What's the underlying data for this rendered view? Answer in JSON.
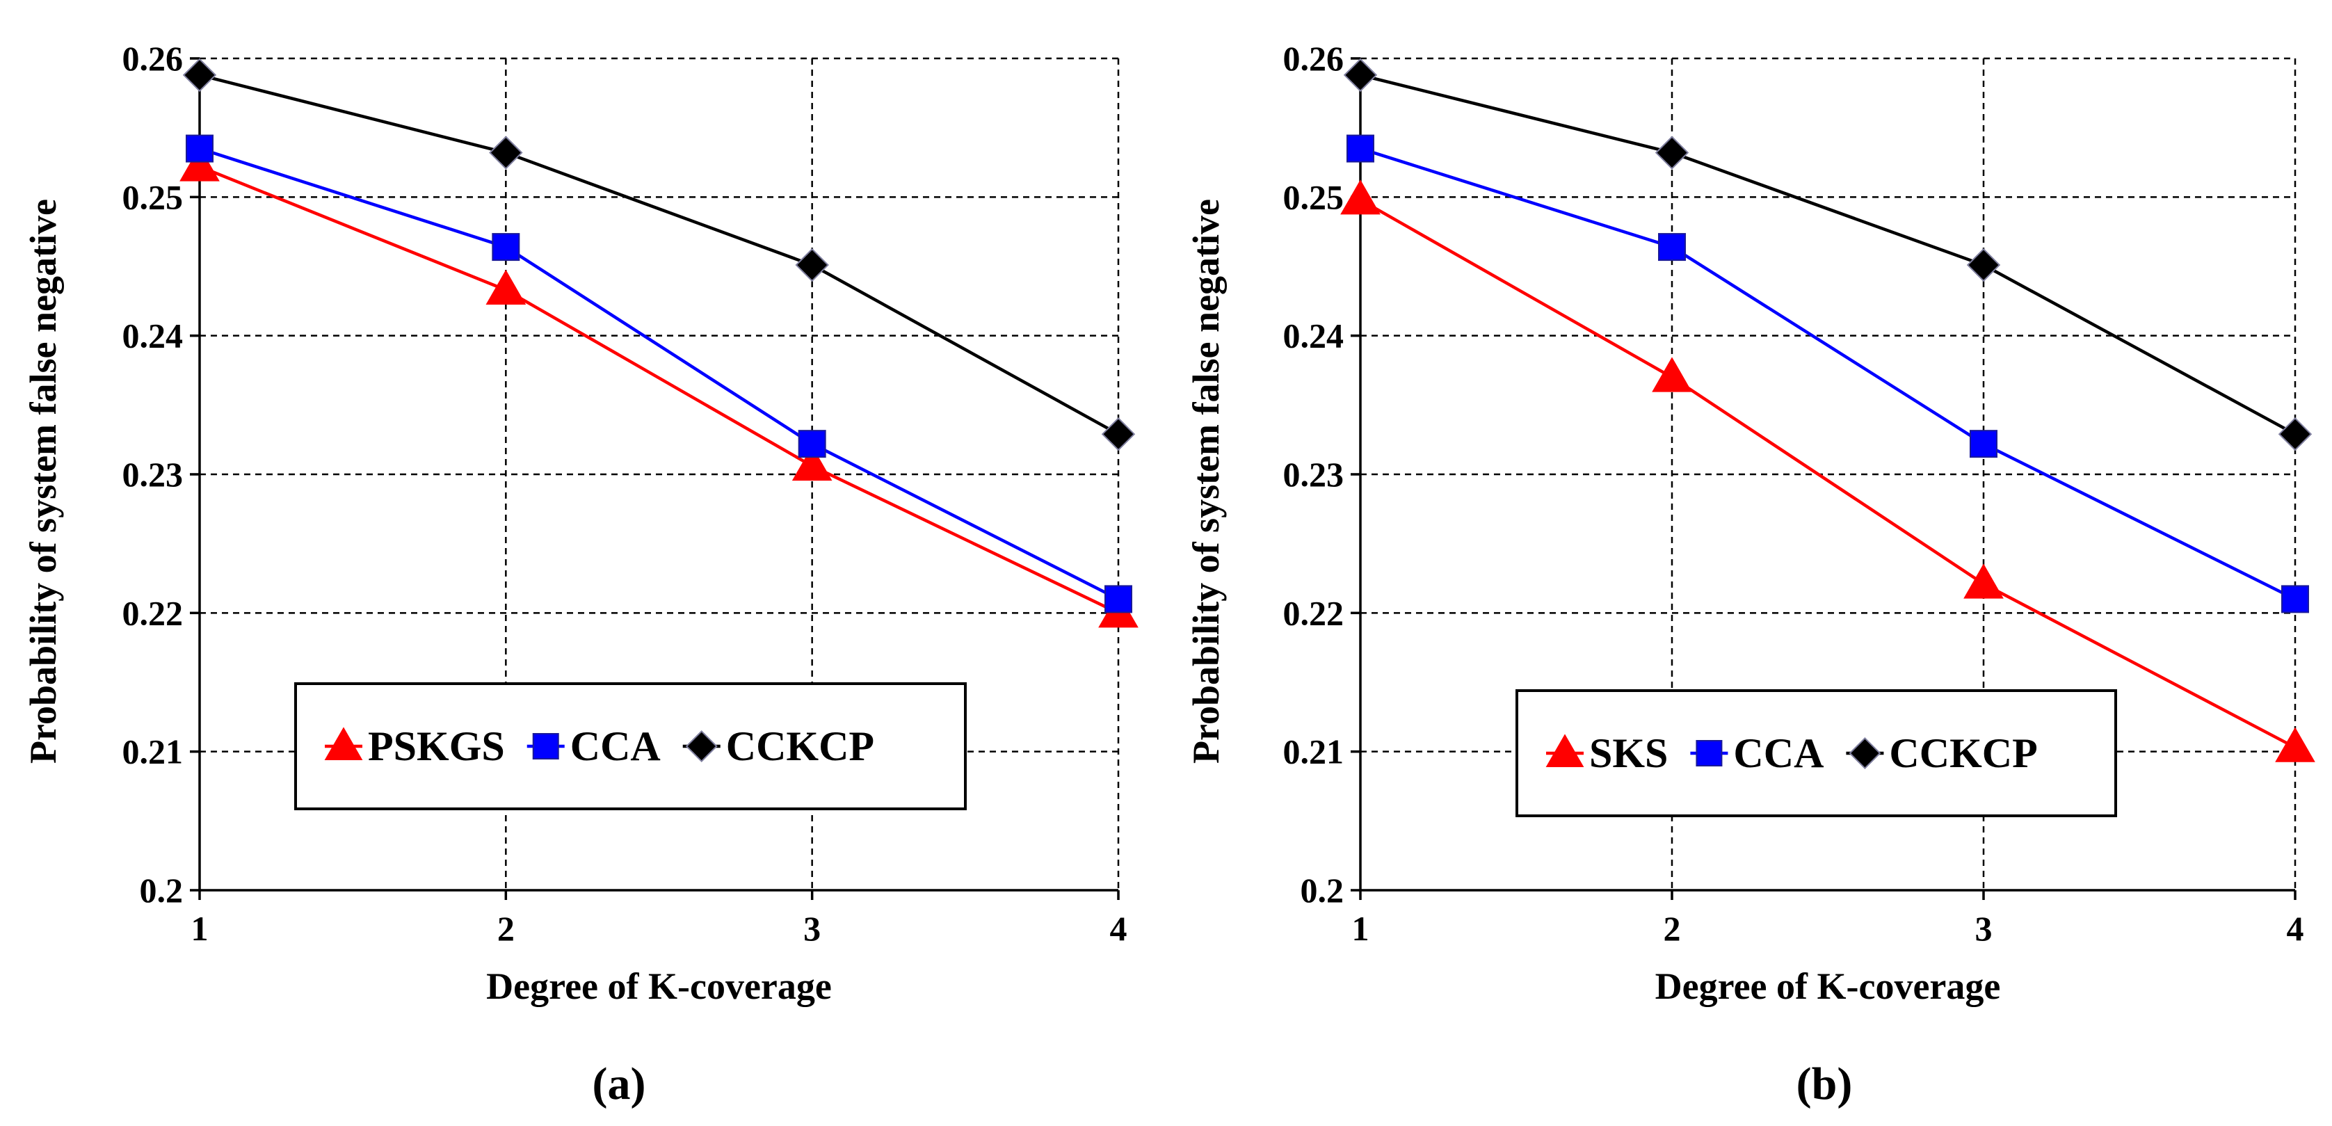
{
  "chart_data": [
    {
      "type": "line",
      "caption": "(a)",
      "xlabel": "Degree of K-coverage",
      "ylabel": "Probability of system false negative",
      "x": [
        1,
        2,
        3,
        4
      ],
      "xlim": [
        1,
        4
      ],
      "ylim": [
        0.2,
        0.26
      ],
      "xticks": [
        "1",
        "2",
        "3",
        "4"
      ],
      "yticks": [
        "0.2",
        "0.21",
        "0.22",
        "0.23",
        "0.24",
        "0.25",
        "0.26"
      ],
      "grid": true,
      "legend_position": "bottom-center",
      "series": [
        {
          "name": "PSKGS",
          "color": "#ff0000",
          "marker": "triangle",
          "values": [
            0.2522,
            0.2433,
            0.2306,
            0.22
          ]
        },
        {
          "name": "CCA",
          "color": "#0000ff",
          "marker": "square",
          "values": [
            0.2535,
            0.2464,
            0.2322,
            0.221
          ]
        },
        {
          "name": "CCKCP",
          "color": "#000000",
          "marker": "diamond",
          "values": [
            0.2588,
            0.2532,
            0.2451,
            0.2329
          ]
        }
      ]
    },
    {
      "type": "line",
      "caption": "(b)",
      "xlabel": "Degree of K-coverage",
      "ylabel": "Probability of system false negative",
      "x": [
        1,
        2,
        3,
        4
      ],
      "xlim": [
        1,
        4
      ],
      "ylim": [
        0.2,
        0.26
      ],
      "xticks": [
        "1",
        "2",
        "3",
        "4"
      ],
      "yticks": [
        "0.2",
        "0.21",
        "0.22",
        "0.23",
        "0.24",
        "0.25",
        "0.26"
      ],
      "grid": true,
      "legend_position": "bottom-center",
      "series": [
        {
          "name": "SKS",
          "color": "#ff0000",
          "marker": "triangle",
          "values": [
            0.2498,
            0.237,
            0.2221,
            0.2103
          ]
        },
        {
          "name": "CCA",
          "color": "#0000ff",
          "marker": "square",
          "values": [
            0.2535,
            0.2464,
            0.2322,
            0.221
          ]
        },
        {
          "name": "CCKCP",
          "color": "#000000",
          "marker": "diamond",
          "values": [
            0.2588,
            0.2532,
            0.2451,
            0.2329
          ]
        }
      ]
    }
  ]
}
